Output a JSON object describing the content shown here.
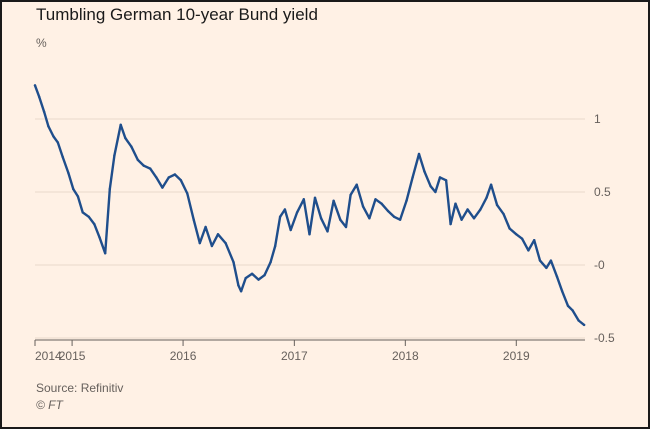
{
  "chart_data": {
    "type": "line",
    "title": "Tumbling German 10-year Bund yield",
    "unit_label": "%",
    "xlabel": "",
    "ylabel": "%",
    "ylim": [
      -0.5,
      1.3
    ],
    "yticks": [
      {
        "value": 1,
        "label": "1"
      },
      {
        "value": 0.5,
        "label": "0.5"
      },
      {
        "value": 0,
        "label": "-0"
      },
      {
        "value": -0.5,
        "label": "-0.5"
      }
    ],
    "xlim": [
      "2014-09-01",
      "2019-08-15"
    ],
    "xticks": [
      {
        "date": "2014-09-01",
        "label": "2014"
      },
      {
        "date": "2015-01-01",
        "label": "2015"
      },
      {
        "date": "2016-01-01",
        "label": "2016"
      },
      {
        "date": "2017-01-01",
        "label": "2017"
      },
      {
        "date": "2018-01-01",
        "label": "2018"
      },
      {
        "date": "2019-01-01",
        "label": "2019"
      }
    ],
    "grid": true,
    "line_color": "#1f4e8c",
    "series": [
      {
        "points": [
          [
            "2014-09-01",
            1.23
          ],
          [
            "2014-09-15",
            1.15
          ],
          [
            "2014-10-01",
            1.05
          ],
          [
            "2014-10-15",
            0.95
          ],
          [
            "2014-11-01",
            0.88
          ],
          [
            "2014-11-15",
            0.84
          ],
          [
            "2014-12-01",
            0.74
          ],
          [
            "2014-12-20",
            0.63
          ],
          [
            "2015-01-05",
            0.52
          ],
          [
            "2015-01-20",
            0.47
          ],
          [
            "2015-02-05",
            0.36
          ],
          [
            "2015-02-25",
            0.33
          ],
          [
            "2015-03-15",
            0.28
          ],
          [
            "2015-04-01",
            0.19
          ],
          [
            "2015-04-20",
            0.08
          ],
          [
            "2015-05-05",
            0.52
          ],
          [
            "2015-05-20",
            0.75
          ],
          [
            "2015-06-10",
            0.96
          ],
          [
            "2015-06-25",
            0.87
          ],
          [
            "2015-07-15",
            0.81
          ],
          [
            "2015-08-05",
            0.72
          ],
          [
            "2015-08-25",
            0.68
          ],
          [
            "2015-09-15",
            0.66
          ],
          [
            "2015-10-05",
            0.6
          ],
          [
            "2015-10-25",
            0.53
          ],
          [
            "2015-11-15",
            0.6
          ],
          [
            "2015-12-05",
            0.62
          ],
          [
            "2015-12-25",
            0.58
          ],
          [
            "2016-01-15",
            0.49
          ],
          [
            "2016-02-05",
            0.31
          ],
          [
            "2016-02-25",
            0.15
          ],
          [
            "2016-03-15",
            0.26
          ],
          [
            "2016-04-05",
            0.13
          ],
          [
            "2016-04-25",
            0.21
          ],
          [
            "2016-05-20",
            0.15
          ],
          [
            "2016-06-15",
            0.02
          ],
          [
            "2016-07-01",
            -0.14
          ],
          [
            "2016-07-10",
            -0.18
          ],
          [
            "2016-07-25",
            -0.09
          ],
          [
            "2016-08-15",
            -0.06
          ],
          [
            "2016-09-05",
            -0.1
          ],
          [
            "2016-09-25",
            -0.07
          ],
          [
            "2016-10-15",
            0.02
          ],
          [
            "2016-10-30",
            0.13
          ],
          [
            "2016-11-15",
            0.33
          ],
          [
            "2016-12-01",
            0.38
          ],
          [
            "2016-12-20",
            0.24
          ],
          [
            "2017-01-10",
            0.36
          ],
          [
            "2017-02-01",
            0.45
          ],
          [
            "2017-02-20",
            0.21
          ],
          [
            "2017-03-10",
            0.46
          ],
          [
            "2017-03-30",
            0.32
          ],
          [
            "2017-04-20",
            0.23
          ],
          [
            "2017-05-10",
            0.44
          ],
          [
            "2017-06-01",
            0.31
          ],
          [
            "2017-06-20",
            0.26
          ],
          [
            "2017-07-05",
            0.48
          ],
          [
            "2017-07-25",
            0.55
          ],
          [
            "2017-08-15",
            0.4
          ],
          [
            "2017-09-05",
            0.32
          ],
          [
            "2017-09-25",
            0.45
          ],
          [
            "2017-10-15",
            0.42
          ],
          [
            "2017-11-05",
            0.37
          ],
          [
            "2017-11-25",
            0.33
          ],
          [
            "2017-12-15",
            0.31
          ],
          [
            "2018-01-05",
            0.44
          ],
          [
            "2018-01-25",
            0.6
          ],
          [
            "2018-02-15",
            0.76
          ],
          [
            "2018-03-05",
            0.64
          ],
          [
            "2018-03-25",
            0.54
          ],
          [
            "2018-04-10",
            0.5
          ],
          [
            "2018-04-25",
            0.6
          ],
          [
            "2018-05-15",
            0.58
          ],
          [
            "2018-05-30",
            0.28
          ],
          [
            "2018-06-15",
            0.42
          ],
          [
            "2018-07-05",
            0.31
          ],
          [
            "2018-07-25",
            0.38
          ],
          [
            "2018-08-15",
            0.32
          ],
          [
            "2018-09-05",
            0.38
          ],
          [
            "2018-09-25",
            0.46
          ],
          [
            "2018-10-10",
            0.55
          ],
          [
            "2018-10-30",
            0.41
          ],
          [
            "2018-11-20",
            0.35
          ],
          [
            "2018-12-10",
            0.25
          ],
          [
            "2019-01-01",
            0.21
          ],
          [
            "2019-01-20",
            0.18
          ],
          [
            "2019-02-10",
            0.1
          ],
          [
            "2019-03-01",
            0.17
          ],
          [
            "2019-03-20",
            0.03
          ],
          [
            "2019-04-10",
            -0.02
          ],
          [
            "2019-04-25",
            0.03
          ],
          [
            "2019-05-15",
            -0.08
          ],
          [
            "2019-06-01",
            -0.18
          ],
          [
            "2019-06-20",
            -0.28
          ],
          [
            "2019-07-05",
            -0.31
          ],
          [
            "2019-07-25",
            -0.38
          ],
          [
            "2019-08-12",
            -0.41
          ]
        ]
      }
    ]
  },
  "footer": {
    "source": "Source: Refinitiv",
    "copyright": "© FT"
  }
}
